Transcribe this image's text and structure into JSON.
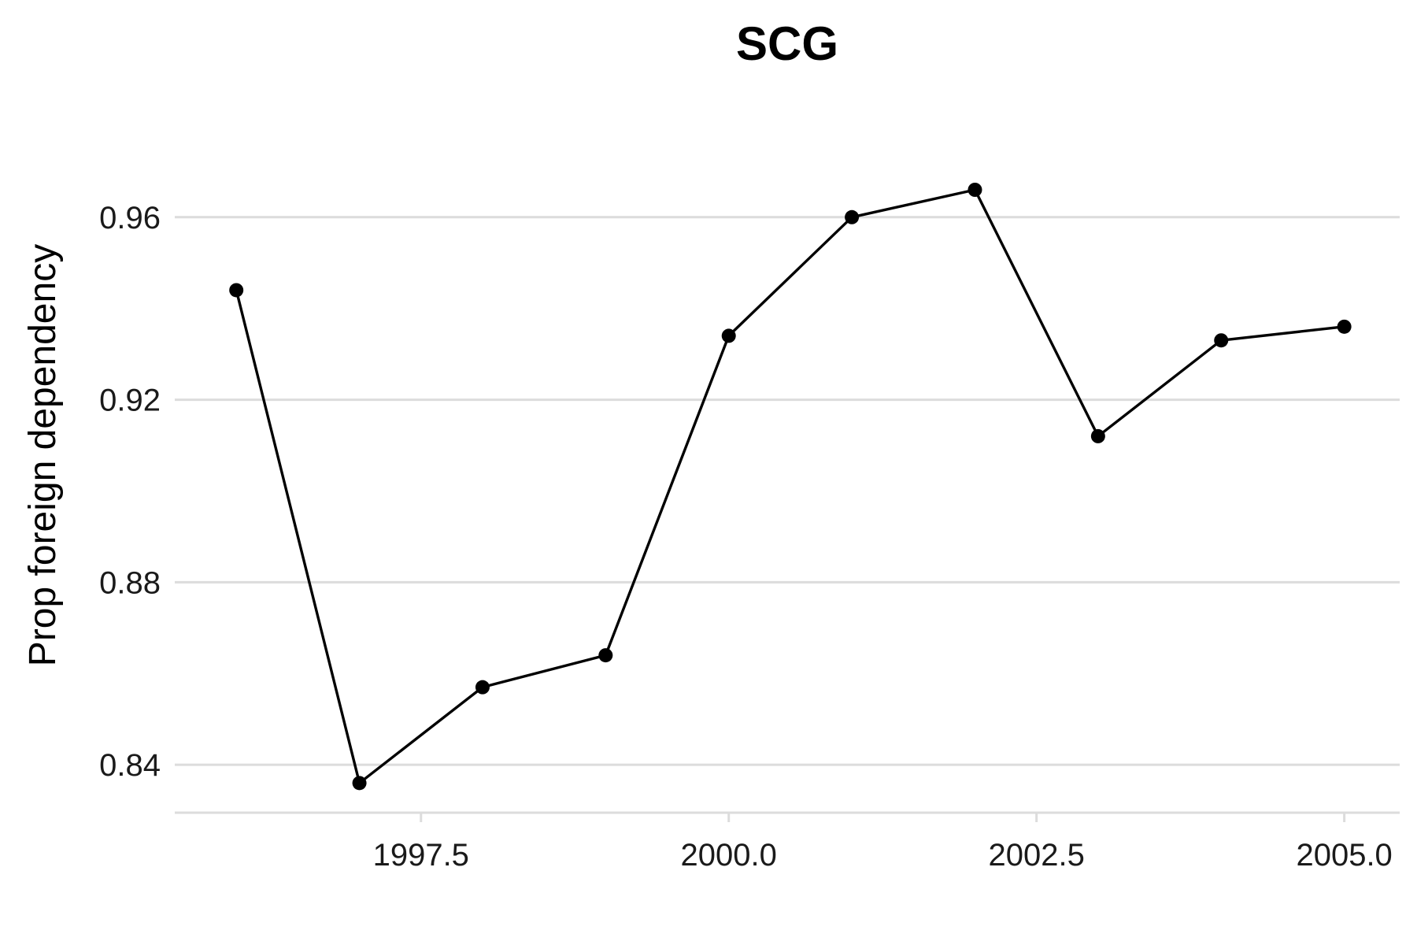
{
  "chart_data": {
    "type": "line",
    "title": "SCG",
    "xlabel": "",
    "ylabel": "Prop foreign dependency",
    "x": [
      1996,
      1997,
      1998,
      1999,
      2000,
      2001,
      2002,
      2003,
      2004,
      2005
    ],
    "series": [
      {
        "values": [
          0.944,
          0.836,
          0.857,
          0.864,
          0.934,
          0.96,
          0.966,
          0.912,
          0.933,
          0.936
        ]
      }
    ],
    "xlim": [
      1995.5,
      2005.45
    ],
    "ylim": [
      0.8295,
      0.9855
    ],
    "xticks": [
      1997.5,
      2000.0,
      2002.5,
      2005.0
    ],
    "xtick_labels": [
      "1997.5",
      "2000.0",
      "2002.5",
      "2005.0"
    ],
    "yticks": [
      0.84,
      0.88,
      0.92,
      0.96
    ],
    "ytick_labels": [
      "0.84",
      "0.88",
      "0.92",
      "0.96"
    ],
    "grid": true,
    "legend": "none",
    "colors": {
      "line": "#000000",
      "grid": "#dcdcdc"
    }
  }
}
